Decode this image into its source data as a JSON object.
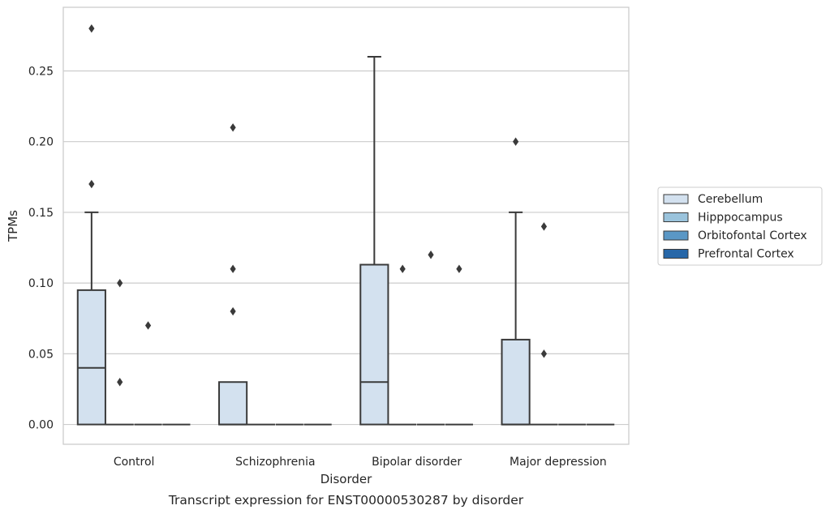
{
  "chart_data": {
    "type": "box",
    "title": "",
    "caption": "Transcript expression for ENST00000530287 by disorder",
    "xlabel": "Disorder",
    "ylabel": "TPMs",
    "ylim": [
      -0.014,
      0.295
    ],
    "yticks": [
      0.0,
      0.05,
      0.1,
      0.15,
      0.2,
      0.25
    ],
    "ytick_labels": [
      "0.00",
      "0.05",
      "0.10",
      "0.15",
      "0.20",
      "0.25"
    ],
    "categories": [
      "Control",
      "Schizophrenia",
      "Bipolar disorder",
      "Major depression"
    ],
    "grid": "horizontal",
    "legend_position": "right",
    "series": [
      {
        "name": "Cerebellum",
        "color": "#d3e1ef",
        "boxes": [
          {
            "min": 0.0,
            "q1": 0.0,
            "median": 0.04,
            "q3": 0.095,
            "max": 0.15,
            "outliers": [
              0.28,
              0.17
            ]
          },
          {
            "min": 0.0,
            "q1": 0.0,
            "median": 0.0,
            "q3": 0.03,
            "max": 0.03,
            "outliers": [
              0.21,
              0.11,
              0.08
            ]
          },
          {
            "min": 0.0,
            "q1": 0.0,
            "median": 0.03,
            "q3": 0.113,
            "max": 0.26,
            "outliers": []
          },
          {
            "min": 0.0,
            "q1": 0.0,
            "median": 0.0,
            "q3": 0.06,
            "max": 0.15,
            "outliers": [
              0.2
            ]
          }
        ]
      },
      {
        "name": "Hipppocampus",
        "color": "#9ac3dc",
        "boxes": [
          {
            "min": 0.0,
            "q1": 0.0,
            "median": 0.0,
            "q3": 0.0,
            "max": 0.0,
            "outliers": [
              0.1,
              0.03
            ]
          },
          {
            "min": 0.0,
            "q1": 0.0,
            "median": 0.0,
            "q3": 0.0,
            "max": 0.0,
            "outliers": []
          },
          {
            "min": 0.0,
            "q1": 0.0,
            "median": 0.0,
            "q3": 0.0,
            "max": 0.0,
            "outliers": [
              0.11
            ]
          },
          {
            "min": 0.0,
            "q1": 0.0,
            "median": 0.0,
            "q3": 0.0,
            "max": 0.0,
            "outliers": [
              0.14,
              0.05
            ]
          }
        ]
      },
      {
        "name": "Orbitofontal Cortex",
        "color": "#5a97c5",
        "boxes": [
          {
            "min": 0.0,
            "q1": 0.0,
            "median": 0.0,
            "q3": 0.0,
            "max": 0.0,
            "outliers": [
              0.07
            ]
          },
          {
            "min": 0.0,
            "q1": 0.0,
            "median": 0.0,
            "q3": 0.0,
            "max": 0.0,
            "outliers": []
          },
          {
            "min": 0.0,
            "q1": 0.0,
            "median": 0.0,
            "q3": 0.0,
            "max": 0.0,
            "outliers": [
              0.12
            ]
          },
          {
            "min": 0.0,
            "q1": 0.0,
            "median": 0.0,
            "q3": 0.0,
            "max": 0.0,
            "outliers": []
          }
        ]
      },
      {
        "name": "Prefrontal Cortex",
        "color": "#2767a8",
        "boxes": [
          {
            "min": 0.0,
            "q1": 0.0,
            "median": 0.0,
            "q3": 0.0,
            "max": 0.0,
            "outliers": []
          },
          {
            "min": 0.0,
            "q1": 0.0,
            "median": 0.0,
            "q3": 0.0,
            "max": 0.0,
            "outliers": []
          },
          {
            "min": 0.0,
            "q1": 0.0,
            "median": 0.0,
            "q3": 0.0,
            "max": 0.0,
            "outliers": [
              0.11
            ]
          },
          {
            "min": 0.0,
            "q1": 0.0,
            "median": 0.0,
            "q3": 0.0,
            "max": 0.0,
            "outliers": []
          }
        ]
      }
    ]
  }
}
